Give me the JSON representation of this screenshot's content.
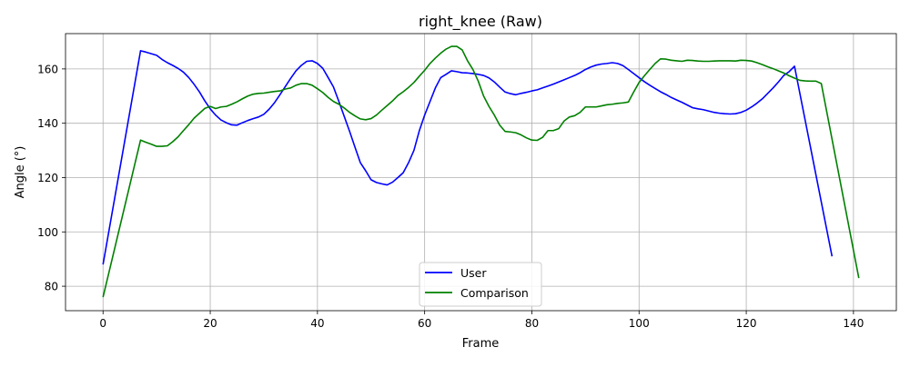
{
  "chart_data": {
    "type": "line",
    "title": "right_knee (Raw)",
    "xlabel": "Frame",
    "ylabel": "Angle (°)",
    "xlim": [
      -7,
      148
    ],
    "ylim": [
      71,
      173
    ],
    "xticks": [
      0,
      20,
      40,
      60,
      80,
      100,
      120,
      140
    ],
    "yticks": [
      80,
      100,
      120,
      140,
      160
    ],
    "grid": true,
    "legend_position": "lower center",
    "series": [
      {
        "name": "User",
        "color": "#0000ff",
        "points": [
          [
            0,
            88
          ],
          [
            7,
            166.7
          ],
          [
            8,
            166.2
          ],
          [
            9,
            165.6
          ],
          [
            10,
            165
          ],
          [
            11,
            163.5
          ],
          [
            12,
            162.3
          ],
          [
            13,
            161.3
          ],
          [
            14,
            160.2
          ],
          [
            15,
            158.8
          ],
          [
            16,
            156.8
          ],
          [
            17,
            154.3
          ],
          [
            18,
            151.5
          ],
          [
            19,
            148.2
          ],
          [
            20,
            145.3
          ],
          [
            21,
            143
          ],
          [
            22,
            141.2
          ],
          [
            23,
            140.2
          ],
          [
            24,
            139.4
          ],
          [
            25,
            139.3
          ],
          [
            26,
            140.2
          ],
          [
            27,
            141
          ],
          [
            28,
            141.7
          ],
          [
            29,
            142.3
          ],
          [
            30,
            143.3
          ],
          [
            31,
            145.2
          ],
          [
            32,
            147.6
          ],
          [
            33,
            150.5
          ],
          [
            34,
            153.5
          ],
          [
            35,
            156.5
          ],
          [
            36,
            159.3
          ],
          [
            37,
            161.3
          ],
          [
            38,
            162.8
          ],
          [
            39,
            163
          ],
          [
            40,
            162
          ],
          [
            41,
            160.2
          ],
          [
            42,
            156.8
          ],
          [
            43,
            153.3
          ],
          [
            44,
            148
          ],
          [
            45,
            142.5
          ],
          [
            46,
            137
          ],
          [
            47,
            131.2
          ],
          [
            48,
            125.5
          ],
          [
            49,
            122.5
          ],
          [
            50,
            119.2
          ],
          [
            51,
            118.2
          ],
          [
            52,
            117.7
          ],
          [
            53,
            117.3
          ],
          [
            54,
            118.3
          ],
          [
            55,
            120
          ],
          [
            56,
            121.8
          ],
          [
            57,
            125.5
          ],
          [
            58,
            130
          ],
          [
            59,
            137.2
          ],
          [
            60,
            143
          ],
          [
            61,
            148
          ],
          [
            62,
            153
          ],
          [
            63,
            156.8
          ],
          [
            64,
            158
          ],
          [
            65,
            159.3
          ],
          [
            66,
            159
          ],
          [
            67,
            158.6
          ],
          [
            68,
            158.5
          ],
          [
            69,
            158.3
          ],
          [
            70,
            158
          ],
          [
            71,
            157.6
          ],
          [
            72,
            156.7
          ],
          [
            73,
            155.2
          ],
          [
            74,
            153.3
          ],
          [
            75,
            151.5
          ],
          [
            76,
            150.9
          ],
          [
            77,
            150.5
          ],
          [
            78,
            151
          ],
          [
            79,
            151.4
          ],
          [
            80,
            151.9
          ],
          [
            81,
            152.3
          ],
          [
            82,
            153
          ],
          [
            83,
            153.7
          ],
          [
            84,
            154.4
          ],
          [
            85,
            155.2
          ],
          [
            86,
            156
          ],
          [
            87,
            156.8
          ],
          [
            88,
            157.6
          ],
          [
            89,
            158.6
          ],
          [
            90,
            159.8
          ],
          [
            91,
            160.7
          ],
          [
            92,
            161.4
          ],
          [
            93,
            161.8
          ],
          [
            94,
            162
          ],
          [
            95,
            162.3
          ],
          [
            96,
            162
          ],
          [
            97,
            161.2
          ],
          [
            98,
            159.8
          ],
          [
            99,
            158.3
          ],
          [
            100,
            156.8
          ],
          [
            101,
            155.3
          ],
          [
            102,
            154
          ],
          [
            103,
            152.8
          ],
          [
            104,
            151.6
          ],
          [
            105,
            150.6
          ],
          [
            106,
            149.5
          ],
          [
            107,
            148.6
          ],
          [
            108,
            147.7
          ],
          [
            109,
            146.7
          ],
          [
            110,
            145.7
          ],
          [
            111,
            145.3
          ],
          [
            112,
            145
          ],
          [
            113,
            144.5
          ],
          [
            114,
            144
          ],
          [
            115,
            143.7
          ],
          [
            116,
            143.5
          ],
          [
            117,
            143.4
          ],
          [
            118,
            143.5
          ],
          [
            119,
            144
          ],
          [
            120,
            144.8
          ],
          [
            121,
            146
          ],
          [
            122,
            147.4
          ],
          [
            123,
            149
          ],
          [
            124,
            151
          ],
          [
            125,
            153
          ],
          [
            126,
            155.2
          ],
          [
            127,
            157.6
          ],
          [
            128,
            159
          ],
          [
            129,
            161
          ],
          [
            136,
            91
          ]
        ]
      },
      {
        "name": "Comparison",
        "color": "#008000",
        "points": [
          [
            0,
            76
          ],
          [
            7,
            133.8
          ],
          [
            8,
            133
          ],
          [
            9,
            132.3
          ],
          [
            10,
            131.5
          ],
          [
            11,
            131.5
          ],
          [
            12,
            131.7
          ],
          [
            13,
            133.2
          ],
          [
            14,
            135
          ],
          [
            15,
            137.3
          ],
          [
            16,
            139.5
          ],
          [
            17,
            141.9
          ],
          [
            18,
            143.7
          ],
          [
            19,
            145.5
          ],
          [
            20,
            146.2
          ],
          [
            21,
            145.4
          ],
          [
            22,
            146
          ],
          [
            23,
            146.2
          ],
          [
            24,
            147
          ],
          [
            25,
            147.9
          ],
          [
            26,
            149
          ],
          [
            27,
            150
          ],
          [
            28,
            150.7
          ],
          [
            29,
            151
          ],
          [
            30,
            151.1
          ],
          [
            31,
            151.4
          ],
          [
            32,
            151.7
          ],
          [
            33,
            151.9
          ],
          [
            34,
            152.6
          ],
          [
            35,
            153
          ],
          [
            36,
            154
          ],
          [
            37,
            154.6
          ],
          [
            38,
            154.6
          ],
          [
            39,
            154
          ],
          [
            40,
            152.7
          ],
          [
            41,
            151.3
          ],
          [
            42,
            149.5
          ],
          [
            43,
            148
          ],
          [
            44,
            147
          ],
          [
            45,
            145.6
          ],
          [
            46,
            144
          ],
          [
            47,
            142.7
          ],
          [
            48,
            141.6
          ],
          [
            49,
            141.3
          ],
          [
            50,
            141.7
          ],
          [
            51,
            143
          ],
          [
            52,
            144.8
          ],
          [
            53,
            146.5
          ],
          [
            54,
            148.2
          ],
          [
            55,
            150.2
          ],
          [
            56,
            151.6
          ],
          [
            57,
            153.2
          ],
          [
            58,
            155
          ],
          [
            59,
            157.3
          ],
          [
            60,
            159.5
          ],
          [
            61,
            162
          ],
          [
            62,
            164
          ],
          [
            63,
            165.8
          ],
          [
            64,
            167.3
          ],
          [
            65,
            168.3
          ],
          [
            66,
            168.3
          ],
          [
            67,
            167
          ],
          [
            68,
            163
          ],
          [
            69,
            159.8
          ],
          [
            70,
            155.5
          ],
          [
            71,
            150
          ],
          [
            72,
            146.2
          ],
          [
            73,
            143
          ],
          [
            74,
            139.3
          ],
          [
            75,
            137
          ],
          [
            76,
            136.8
          ],
          [
            77,
            136.5
          ],
          [
            78,
            135.7
          ],
          [
            79,
            134.6
          ],
          [
            80,
            133.8
          ],
          [
            81,
            133.7
          ],
          [
            82,
            134.8
          ],
          [
            83,
            137.3
          ],
          [
            84,
            137.3
          ],
          [
            85,
            138
          ],
          [
            86,
            140.8
          ],
          [
            87,
            142.3
          ],
          [
            88,
            142.8
          ],
          [
            89,
            144
          ],
          [
            90,
            146
          ],
          [
            91,
            146
          ],
          [
            92,
            146
          ],
          [
            93,
            146.4
          ],
          [
            94,
            146.8
          ],
          [
            95,
            147
          ],
          [
            96,
            147.3
          ],
          [
            97,
            147.5
          ],
          [
            98,
            147.8
          ],
          [
            99,
            151.5
          ],
          [
            100,
            155
          ],
          [
            101,
            157.5
          ],
          [
            102,
            159.8
          ],
          [
            103,
            162
          ],
          [
            104,
            163.7
          ],
          [
            105,
            163.6
          ],
          [
            106,
            163.2
          ],
          [
            107,
            163
          ],
          [
            108,
            162.8
          ],
          [
            109,
            163.2
          ],
          [
            110,
            163.1
          ],
          [
            111,
            162.9
          ],
          [
            112,
            162.8
          ],
          [
            113,
            162.8
          ],
          [
            114,
            162.9
          ],
          [
            115,
            163
          ],
          [
            116,
            163
          ],
          [
            117,
            163
          ],
          [
            118,
            162.9
          ],
          [
            119,
            163.2
          ],
          [
            120,
            163.1
          ],
          [
            121,
            162.9
          ],
          [
            122,
            162.3
          ],
          [
            123,
            161.6
          ],
          [
            124,
            160.8
          ],
          [
            125,
            160.1
          ],
          [
            126,
            159.3
          ],
          [
            127,
            158.5
          ],
          [
            128,
            157.5
          ],
          [
            129,
            156.6
          ],
          [
            130,
            155.8
          ],
          [
            131,
            155.6
          ],
          [
            132,
            155.5
          ],
          [
            133,
            155.5
          ],
          [
            134,
            154.6
          ],
          [
            141,
            83
          ]
        ]
      }
    ]
  }
}
